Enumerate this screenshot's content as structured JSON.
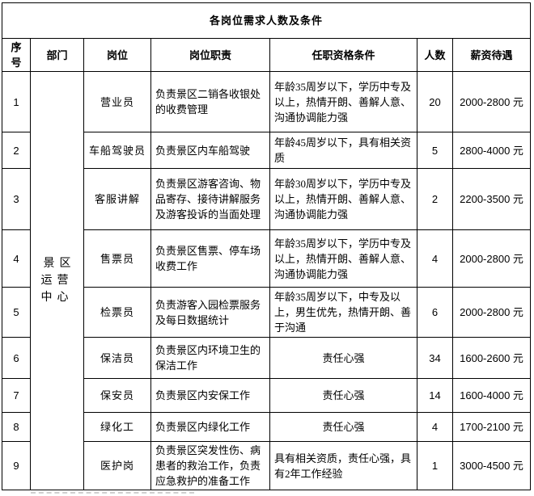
{
  "title": "各岗位需求人数及条件",
  "columns": {
    "no": "序号",
    "dept": "部门",
    "position": "岗位",
    "duty": "岗位职责",
    "qualification": "任职资格条件",
    "count": "人数",
    "salary": "薪资待遇"
  },
  "department": "景区运营中心",
  "rows": [
    {
      "no": "1",
      "position": "营业员",
      "duty": "负责景区二销各收银处的收费管理",
      "qualification": "年龄35周岁以下，学历中专及以上，热情开朗、善解人意、沟通协调能力强",
      "count": "20",
      "salary": "2000-2800 元"
    },
    {
      "no": "2",
      "position": "车船驾驶员",
      "duty": "负责景区内车船驾驶",
      "qualification": "年龄45周岁以下，具有相关资质",
      "count": "5",
      "salary": "2800-4000 元"
    },
    {
      "no": "3",
      "position": "客服讲解",
      "duty": "负责景区游客咨询、物品寄存、接待讲解服务及游客投诉的当面处理",
      "qualification": "年龄30周岁以下，学历中专及以上，热情开朗、善解人意、沟通协调能力强",
      "count": "2",
      "salary": "2200-3500 元"
    },
    {
      "no": "4",
      "position": "售票员",
      "duty": "负责景区售票、停车场收费工作",
      "qualification": "年龄35周岁以下，学历中专及以上，热情开朗、善解人意、沟通协调能力强",
      "count": "4",
      "salary": "2000-2800 元"
    },
    {
      "no": "5",
      "position": "检票员",
      "duty": "负责游客入园检票服务及每日数据统计",
      "qualification": "年龄35周岁以下，中专及以上，男生优先，热情开朗、善于沟通",
      "count": "6",
      "salary": "2000-2800 元"
    },
    {
      "no": "6",
      "position": "保洁员",
      "duty": "负责景区内环境卫生的保洁工作",
      "qualification": "责任心强",
      "count": "34",
      "salary": "1600-2600 元"
    },
    {
      "no": "7",
      "position": "保安员",
      "duty": "负责景区内安保工作",
      "qualification": "责任心强",
      "count": "14",
      "salary": "1600-4000 元"
    },
    {
      "no": "8",
      "position": "绿化工",
      "duty": "负责景区内绿化工作",
      "qualification": "责任心强",
      "count": "4",
      "salary": "1700-2100 元"
    },
    {
      "no": "9",
      "position": "医护岗",
      "duty": "负责景区突发性伤、病患者的救治工作，负责应急救护的准备工作",
      "qualification": "具有相关资质，责任心强，具有2年工作经验",
      "count": "1",
      "salary": "3000-4500 元"
    }
  ]
}
